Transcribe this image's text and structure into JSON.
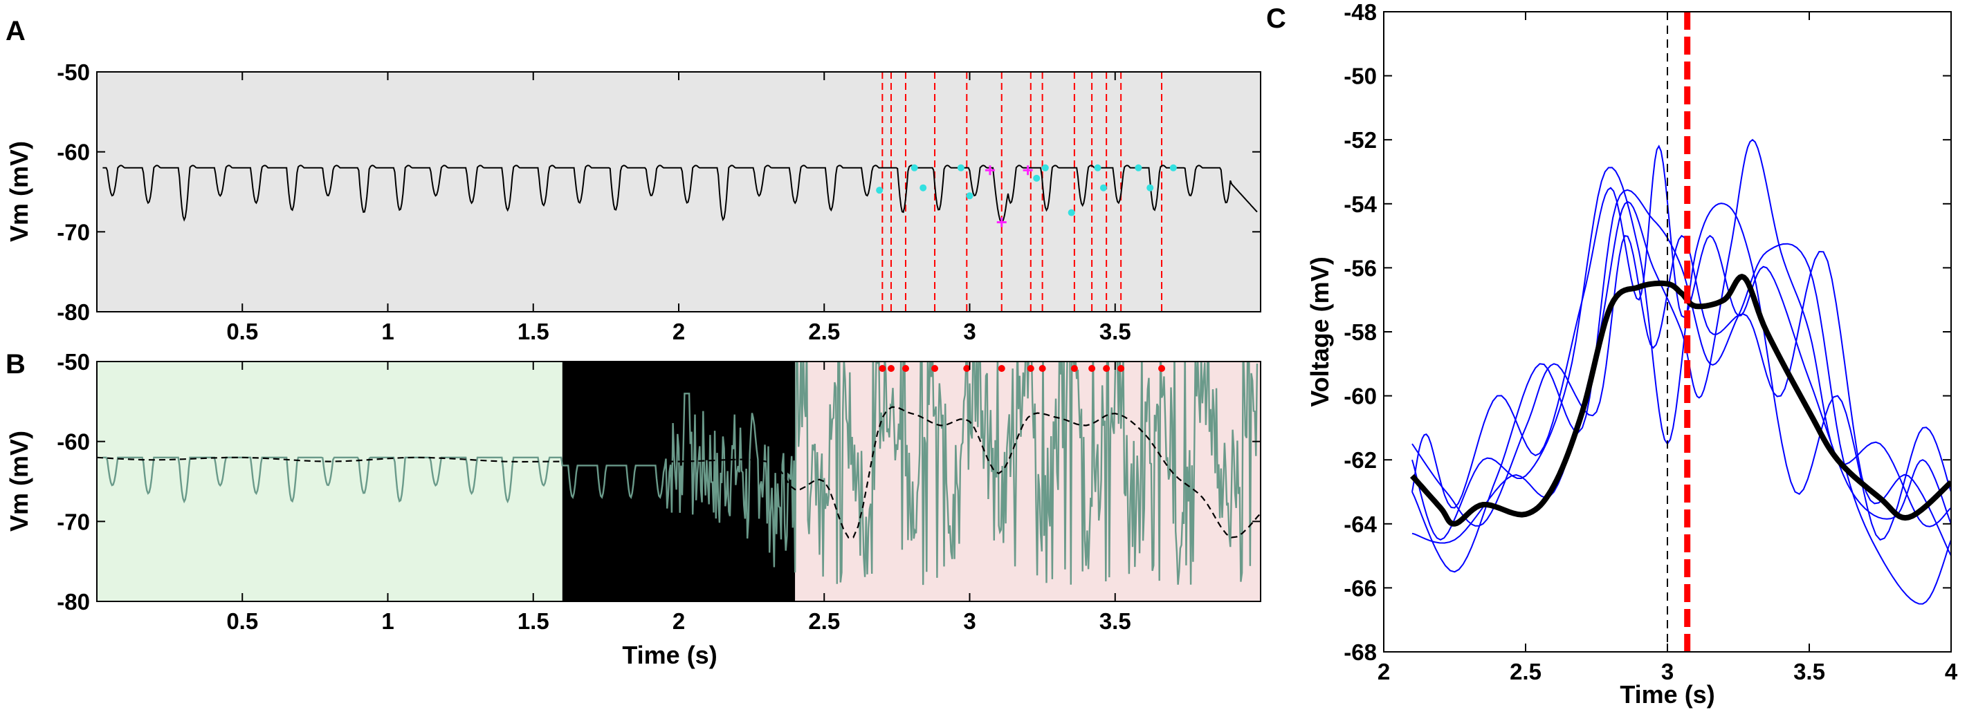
{
  "panels": {
    "A": {
      "letter": "A",
      "ylabel": "Vm (mV)",
      "xlabel": "",
      "xlim": [
        0,
        4
      ],
      "ylim": [
        -80,
        -50
      ],
      "xticks": [
        "0.5",
        "1",
        "1.5",
        "2",
        "2.5",
        "3",
        "3.5"
      ],
      "yticks": [
        "-50",
        "-60",
        "-70",
        "-80"
      ],
      "background": "#e6e6e6"
    },
    "B": {
      "letter": "B",
      "ylabel": "Vm (mV)",
      "xlabel": "Time (s)",
      "xlim": [
        0,
        4
      ],
      "ylim": [
        -80,
        -50
      ],
      "xticks": [
        "0.5",
        "1",
        "1.5",
        "2",
        "2.5",
        "3",
        "3.5"
      ],
      "yticks": [
        "-50",
        "-60",
        "-70",
        "-80"
      ],
      "regions": [
        {
          "x0": 0.0,
          "x1": 1.6,
          "color": "#e4f5e3"
        },
        {
          "x0": 1.6,
          "x1": 2.4,
          "color": "#000000"
        },
        {
          "x0": 2.4,
          "x1": 4.0,
          "color": "#f7e2e2"
        }
      ]
    },
    "C": {
      "letter": "C",
      "ylabel": "Voltage (mV)",
      "xlabel": "Time (s)",
      "xlim": [
        2,
        4
      ],
      "ylim": [
        -68,
        -48
      ],
      "xticks": [
        "2",
        "2.5",
        "3",
        "3.5",
        "4"
      ],
      "yticks": [
        "-48",
        "-50",
        "-52",
        "-54",
        "-56",
        "-58",
        "-60",
        "-62",
        "-64",
        "-66",
        "-68"
      ]
    }
  },
  "chart_data": [
    {
      "panel": "A",
      "type": "line",
      "xlim": [
        0,
        4
      ],
      "ylim": [
        -80,
        -50
      ],
      "baseline_mV": -62,
      "trace_color": "#000000",
      "event_times": [
        2.7,
        2.73,
        2.78,
        2.88,
        2.99,
        3.11,
        3.21,
        3.25,
        3.36,
        3.42,
        3.47,
        3.52,
        3.66
      ],
      "event_line_color": "#ff0000",
      "cyan_markers": [
        {
          "x": 2.69,
          "y": -64.8
        },
        {
          "x": 2.81,
          "y": -62.0
        },
        {
          "x": 2.84,
          "y": -64.5
        },
        {
          "x": 2.97,
          "y": -62.0
        },
        {
          "x": 3.0,
          "y": -65.5
        },
        {
          "x": 3.23,
          "y": -63.3
        },
        {
          "x": 3.26,
          "y": -62.0
        },
        {
          "x": 3.35,
          "y": -67.6
        },
        {
          "x": 3.44,
          "y": -62.0
        },
        {
          "x": 3.46,
          "y": -64.5
        },
        {
          "x": 3.58,
          "y": -62.0
        },
        {
          "x": 3.62,
          "y": -64.5
        },
        {
          "x": 3.7,
          "y": -62.0
        }
      ],
      "magenta_markers": [
        {
          "x": 3.07,
          "y": -62.3
        },
        {
          "x": 3.11,
          "y": -68.8
        },
        {
          "x": 3.2,
          "y": -62.3
        }
      ]
    },
    {
      "panel": "B",
      "type": "line",
      "xlim": [
        0,
        4
      ],
      "ylim": [
        -80,
        -50
      ],
      "trace_color": "#6a9a8a",
      "envelope_color": "#000000",
      "event_times": [
        2.7,
        2.73,
        2.78,
        2.88,
        2.99,
        3.11,
        3.21,
        3.25,
        3.36,
        3.42,
        3.47,
        3.52,
        3.66
      ],
      "event_dot_color": "#ff0000",
      "envelope": [
        [
          0.0,
          -62.0
        ],
        [
          0.2,
          -62.3
        ],
        [
          0.5,
          -62.0
        ],
        [
          0.8,
          -62.5
        ],
        [
          1.1,
          -62.0
        ],
        [
          1.4,
          -62.5
        ],
        [
          1.6,
          -62.5
        ],
        [
          2.0,
          -62.5
        ],
        [
          2.3,
          -62.5
        ],
        [
          2.4,
          -66.0
        ],
        [
          2.5,
          -65.0
        ],
        [
          2.6,
          -72.0
        ],
        [
          2.7,
          -57.0
        ],
        [
          2.8,
          -56.5
        ],
        [
          2.9,
          -58.0
        ],
        [
          3.0,
          -57.5
        ],
        [
          3.1,
          -64.0
        ],
        [
          3.2,
          -57.0
        ],
        [
          3.3,
          -57.0
        ],
        [
          3.4,
          -58.0
        ],
        [
          3.5,
          -56.5
        ],
        [
          3.6,
          -59.0
        ],
        [
          3.7,
          -64.0
        ],
        [
          3.8,
          -67.0
        ],
        [
          3.9,
          -72.0
        ],
        [
          4.0,
          -69.0
        ]
      ]
    },
    {
      "panel": "C",
      "type": "line",
      "xlim": [
        2,
        4
      ],
      "ylim": [
        -68,
        -48
      ],
      "vline_black_dashed": 3.0,
      "vline_red_dashed": 3.07,
      "mean_series": {
        "color": "#000000",
        "points": [
          [
            2.1,
            -62.5
          ],
          [
            2.2,
            -63.5
          ],
          [
            2.25,
            -64.0
          ],
          [
            2.35,
            -63.4
          ],
          [
            2.5,
            -63.7
          ],
          [
            2.6,
            -62.8
          ],
          [
            2.7,
            -60.5
          ],
          [
            2.8,
            -57.2
          ],
          [
            2.9,
            -56.6
          ],
          [
            3.0,
            -56.5
          ],
          [
            3.05,
            -56.8
          ],
          [
            3.1,
            -57.2
          ],
          [
            3.2,
            -57.0
          ],
          [
            3.27,
            -56.3
          ],
          [
            3.35,
            -58.0
          ],
          [
            3.5,
            -60.5
          ],
          [
            3.6,
            -62.0
          ],
          [
            3.75,
            -63.2
          ],
          [
            3.85,
            -63.8
          ],
          [
            4.0,
            -62.7
          ]
        ]
      },
      "trial_series": [
        {
          "color": "#0000ff",
          "points": [
            [
              2.1,
              -63.0
            ],
            [
              2.15,
              -61.2
            ],
            [
              2.25,
              -63.5
            ],
            [
              2.4,
              -60.0
            ],
            [
              2.55,
              -61.8
            ],
            [
              2.7,
              -57.0
            ],
            [
              2.8,
              -53.5
            ],
            [
              2.9,
              -57.0
            ],
            [
              2.97,
              -52.2
            ],
            [
              3.05,
              -57.5
            ],
            [
              3.15,
              -55.0
            ],
            [
              3.25,
              -57.5
            ],
            [
              3.35,
              -56.0
            ],
            [
              3.5,
              -59.5
            ],
            [
              3.65,
              -63.0
            ],
            [
              3.8,
              -63.8
            ],
            [
              3.9,
              -62.0
            ],
            [
              4.0,
              -64.0
            ]
          ]
        },
        {
          "color": "#0000ff",
          "points": [
            [
              2.1,
              -62.0
            ],
            [
              2.2,
              -64.5
            ],
            [
              2.35,
              -62.0
            ],
            [
              2.5,
              -62.5
            ],
            [
              2.65,
              -59.5
            ],
            [
              2.78,
              -53.0
            ],
            [
              2.9,
              -55.5
            ],
            [
              3.0,
              -61.5
            ],
            [
              3.1,
              -55.5
            ],
            [
              3.2,
              -54.0
            ],
            [
              3.3,
              -56.0
            ],
            [
              3.45,
              -63.0
            ],
            [
              3.6,
              -60.0
            ],
            [
              3.75,
              -64.5
            ],
            [
              3.9,
              -61.0
            ],
            [
              4.0,
              -63.0
            ]
          ]
        },
        {
          "color": "#0000ff",
          "points": [
            [
              2.1,
              -64.3
            ],
            [
              2.25,
              -64.5
            ],
            [
              2.45,
              -62.5
            ],
            [
              2.6,
              -63.0
            ],
            [
              2.75,
              -58.5
            ],
            [
              2.85,
              -54.0
            ],
            [
              2.95,
              -56.0
            ],
            [
              3.05,
              -58.0
            ],
            [
              3.12,
              -60.0
            ],
            [
              3.22,
              -55.5
            ],
            [
              3.3,
              -52.0
            ],
            [
              3.4,
              -55.5
            ],
            [
              3.5,
              -58.0
            ],
            [
              3.6,
              -62.0
            ],
            [
              3.75,
              -61.5
            ],
            [
              3.9,
              -64.0
            ],
            [
              4.0,
              -63.5
            ]
          ]
        },
        {
          "color": "#0000ff",
          "points": [
            [
              2.1,
              -63.0
            ],
            [
              2.25,
              -65.5
            ],
            [
              2.4,
              -62.5
            ],
            [
              2.55,
              -59.0
            ],
            [
              2.7,
              -61.0
            ],
            [
              2.82,
              -54.0
            ],
            [
              2.95,
              -54.5
            ],
            [
              3.05,
              -56.0
            ],
            [
              3.15,
              -59.0
            ],
            [
              3.25,
              -57.5
            ],
            [
              3.35,
              -55.5
            ],
            [
              3.5,
              -56.0
            ],
            [
              3.62,
              -62.0
            ],
            [
              3.75,
              -65.0
            ],
            [
              3.9,
              -66.5
            ],
            [
              4.0,
              -64.5
            ]
          ]
        },
        {
          "color": "#0000ff",
          "points": [
            [
              2.1,
              -61.5
            ],
            [
              2.22,
              -63.0
            ],
            [
              2.35,
              -64.0
            ],
            [
              2.5,
              -61.0
            ],
            [
              2.6,
              -59.0
            ],
            [
              2.75,
              -60.5
            ],
            [
              2.85,
              -55.0
            ],
            [
              2.95,
              -58.5
            ],
            [
              3.05,
              -55.0
            ],
            [
              3.15,
              -58.0
            ],
            [
              3.28,
              -57.5
            ],
            [
              3.4,
              -60.0
            ],
            [
              3.55,
              -55.5
            ],
            [
              3.7,
              -63.0
            ],
            [
              3.85,
              -62.5
            ],
            [
              4.0,
              -65.0
            ]
          ]
        }
      ]
    }
  ]
}
